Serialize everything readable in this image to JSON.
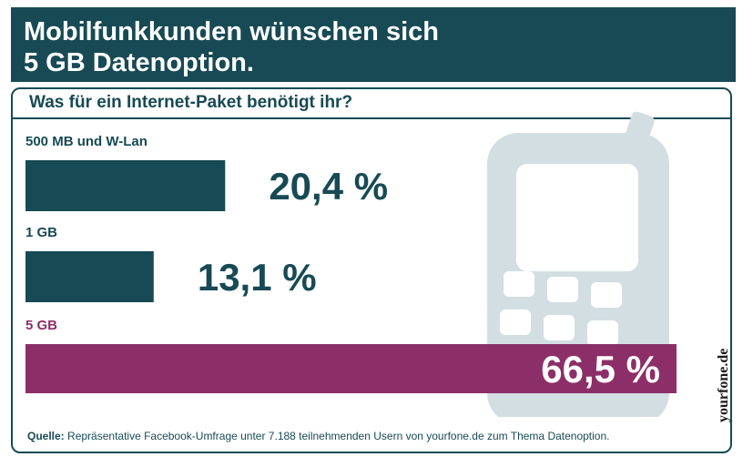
{
  "header": {
    "title": "Mobilfunkkunden wünschen sich\n5 GB Datenoption."
  },
  "colors": {
    "header_bg": "#174a54",
    "bar_default": "#174a54",
    "bar_highlight": "#8c2f68",
    "phone_watermark": "#d3dee3"
  },
  "chart_data": {
    "type": "bar",
    "orientation": "horizontal",
    "title": "Was für ein Internet-Paket benötigt ihr?",
    "categories": [
      "500 MB und W-Lan",
      "1 GB",
      "5 GB"
    ],
    "values": [
      20.4,
      13.1,
      66.5
    ],
    "value_labels": [
      "20,4 %",
      "13,1 %",
      "66,5 %"
    ],
    "highlight_index": 2,
    "unit": "%",
    "grid": false,
    "legend": "none"
  },
  "source": {
    "label": "Quelle:",
    "text": "Repräsentative Facebook-Umfrage unter 7.188 teilnehmenden Usern von yourfone.de zum Thema Datenoption."
  },
  "watermark": {
    "text": "yourfone.de"
  },
  "icons": {
    "background": "mobile-phone-icon"
  }
}
